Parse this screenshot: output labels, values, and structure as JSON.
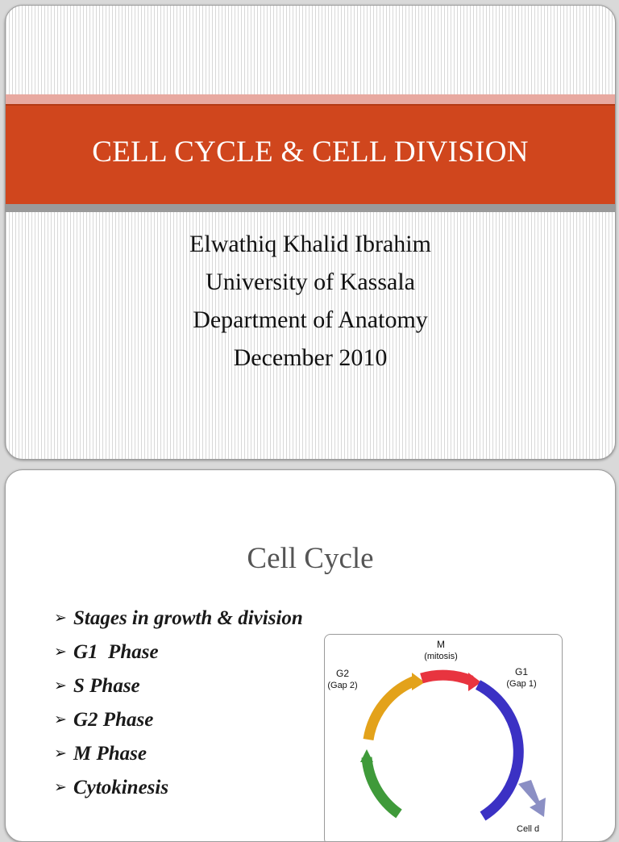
{
  "slide1": {
    "title": "CELL CYCLE & CELL DIVISION",
    "subtitle_lines": [
      "Elwathiq Khalid Ibrahim",
      "University of Kassala",
      "Department of Anatomy",
      "December 2010"
    ],
    "colors": {
      "title_bar": "#d0461d",
      "accent_top": "#e8a9a0",
      "accent_bottom": "#9a9a9a"
    }
  },
  "slide2": {
    "heading": "Cell Cycle",
    "bullets": [
      "Stages in growth & division",
      "G1  Phase",
      "S Phase",
      "G2 Phase",
      "M Phase",
      "Cytokinesis"
    ],
    "diagram": {
      "m_label": "M",
      "m_sub": "(mitosis)",
      "g2_label": "G2",
      "g2_sub": "(Gap 2)",
      "g1_label": "G1",
      "g1_sub": "(Gap 1)",
      "cut_label": "Cell d",
      "colors": {
        "M": "#e8343f",
        "G1": "#3b31c4",
        "G2": "#e3a21a",
        "S": "#3f9a3a",
        "exit": "#8b8fc4"
      }
    }
  }
}
